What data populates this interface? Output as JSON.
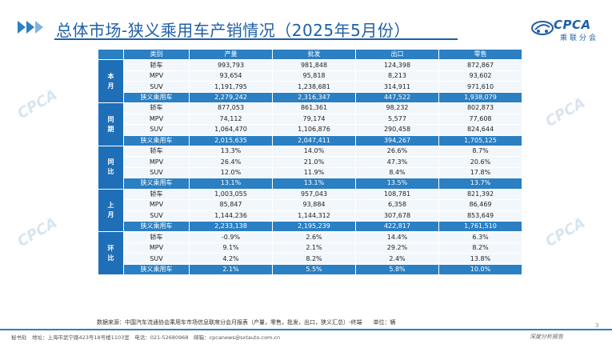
{
  "header": {
    "title": "总体市场-狭义乘用车产销情况（2025年5月份）",
    "logo_text": "CPCA",
    "logo_sub": "乘联分会",
    "accent_color": "#1f5fa8"
  },
  "table": {
    "columns": [
      "类别",
      "产量",
      "批发",
      "出口",
      "零售"
    ],
    "groups": [
      {
        "label": "本月",
        "rows": [
          {
            "type": "轿车",
            "vals": [
              "993,793",
              "981,848",
              "124,398",
              "872,867"
            ]
          },
          {
            "type": "MPV",
            "vals": [
              "93,654",
              "95,818",
              "8,213",
              "93,602"
            ]
          },
          {
            "type": "SUV",
            "vals": [
              "1,191,795",
              "1,238,681",
              "314,911",
              "971,610"
            ]
          }
        ],
        "total": {
          "type": "狭义乘用车",
          "vals": [
            "2,279,242",
            "2,316,347",
            "447,522",
            "1,938,079"
          ]
        }
      },
      {
        "label": "同期",
        "rows": [
          {
            "type": "轿车",
            "vals": [
              "877,053",
              "861,361",
              "98,232",
              "802,873"
            ]
          },
          {
            "type": "MPV",
            "vals": [
              "74,112",
              "79,174",
              "5,577",
              "77,608"
            ]
          },
          {
            "type": "SUV",
            "vals": [
              "1,064,470",
              "1,106,876",
              "290,458",
              "824,644"
            ]
          }
        ],
        "total": {
          "type": "狭义乘用车",
          "vals": [
            "2,015,635",
            "2,047,411",
            "394,267",
            "1,705,125"
          ]
        }
      },
      {
        "label": "同比",
        "rows": [
          {
            "type": "轿车",
            "vals": [
              "13.3%",
              "14.0%",
              "26.6%",
              "8.7%"
            ]
          },
          {
            "type": "MPV",
            "vals": [
              "26.4%",
              "21.0%",
              "47.3%",
              "20.6%"
            ]
          },
          {
            "type": "SUV",
            "vals": [
              "12.0%",
              "11.9%",
              "8.4%",
              "17.8%"
            ]
          }
        ],
        "total": {
          "type": "狭义乘用车",
          "vals": [
            "13.1%",
            "13.1%",
            "13.5%",
            "13.7%"
          ]
        }
      },
      {
        "label": "上月",
        "rows": [
          {
            "type": "轿车",
            "vals": [
              "1,003,055",
              "957,043",
              "108,781",
              "821,392"
            ]
          },
          {
            "type": "MPV",
            "vals": [
              "85,847",
              "93,884",
              "6,358",
              "86,469"
            ]
          },
          {
            "type": "SUV",
            "vals": [
              "1,144,236",
              "1,144,312",
              "307,678",
              "853,649"
            ]
          }
        ],
        "total": {
          "type": "狭义乘用车",
          "vals": [
            "2,233,138",
            "2,195,239",
            "422,817",
            "1,761,510"
          ]
        }
      },
      {
        "label": "环比",
        "rows": [
          {
            "type": "轿车",
            "vals": [
              "-0.9%",
              "2.6%",
              "14.4%",
              "6.3%"
            ]
          },
          {
            "type": "MPV",
            "vals": [
              "9.1%",
              "2.1%",
              "29.2%",
              "8.2%"
            ]
          },
          {
            "type": "SUV",
            "vals": [
              "4.2%",
              "8.2%",
              "2.4%",
              "13.8%"
            ]
          }
        ],
        "total": {
          "type": "狭义乘用车",
          "vals": [
            "2.1%",
            "5.5%",
            "5.8%",
            "10.0%"
          ]
        }
      }
    ]
  },
  "source": "数据来源：中国汽车流通协会乘用车市场信息联席分会月报表（产量，零售，批发，出口，狭义汇总）-终端　　单位：辆",
  "footer": {
    "text": "秘书处　地址：上海市武宁路423号18号楼1103室　电话：021-52680968　邮箱：cpcanews@sxtauto.com.cn",
    "report": "深度分析报告",
    "page": "3"
  }
}
